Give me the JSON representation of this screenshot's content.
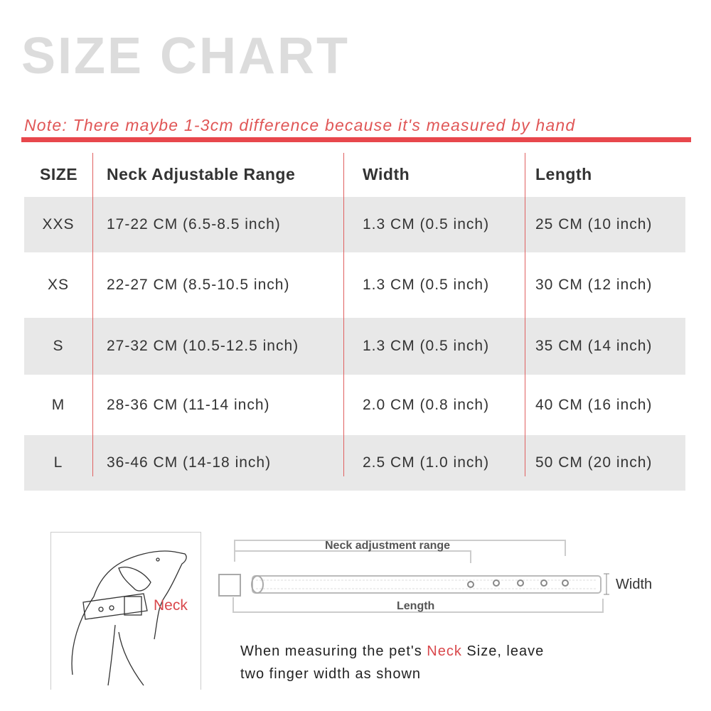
{
  "title": "SIZE CHART",
  "note": "Note: There maybe 1-3cm difference because it's measured by hand",
  "accent_color": "#e8474c",
  "table": {
    "headers": [
      "SIZE",
      "Neck Adjustable Range",
      "Width",
      "Length"
    ],
    "rows": [
      [
        "XXS",
        "17-22 CM (6.5-8.5 inch)",
        "1.3 CM (0.5 inch)",
        "25 CM (10 inch)"
      ],
      [
        "XS",
        "22-27 CM (8.5-10.5 inch)",
        "1.3 CM (0.5 inch)",
        "30 CM (12 inch)"
      ],
      [
        "S",
        "27-32 CM (10.5-12.5 inch)",
        "1.3 CM (0.5 inch)",
        "35 CM (14 inch)"
      ],
      [
        "M",
        "28-36 CM (11-14 inch)",
        "2.0 CM (0.8 inch)",
        "40 CM (16 inch)"
      ],
      [
        "L",
        "36-46 CM (14-18 inch)",
        "2.5 CM (1.0 inch)",
        "50 CM (20 inch)"
      ]
    ]
  },
  "diagram": {
    "neck_label": "Neck",
    "neck_range_label": "Neck adjustment range",
    "length_label": "Length",
    "width_label": "Width"
  },
  "instruction": {
    "part1": "When measuring the pet's ",
    "highlight": "Neck",
    "part2": " Size, leave",
    "line2": "two finger width as shown"
  }
}
